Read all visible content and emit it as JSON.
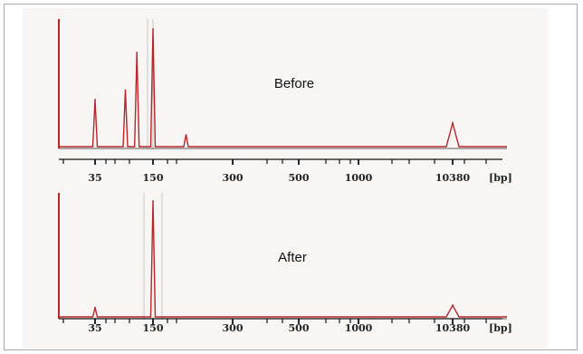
{
  "chart_data": [
    {
      "type": "line",
      "title": "Before",
      "x_unit": "[bp]",
      "tick_labels": [
        "35",
        "150",
        "300",
        "500",
        "1000",
        "10380"
      ],
      "colors": {
        "trace": "#b8262a",
        "baseline": "#5a5a5a",
        "marker": "#c8c8c8"
      },
      "peaks": [
        {
          "size_bp": 35,
          "height": 0.4
        },
        {
          "size_bp": 75,
          "height": 0.48
        },
        {
          "size_bp": 100,
          "height": 0.8
        },
        {
          "size_bp": 150,
          "height": 1.0
        },
        {
          "size_bp": 200,
          "height": 0.1
        },
        {
          "size_bp": 10380,
          "height": 0.2
        }
      ]
    },
    {
      "type": "line",
      "title": "After",
      "x_unit": "[bp]",
      "tick_labels": [
        "35",
        "150",
        "300",
        "500",
        "1000",
        "10380"
      ],
      "colors": {
        "trace": "#b8262a",
        "baseline": "#5a5a5a",
        "marker": "#c8c8c8"
      },
      "peaks": [
        {
          "size_bp": 35,
          "height": 0.08
        },
        {
          "size_bp": 150,
          "height": 1.0
        },
        {
          "size_bp": 10380,
          "height": 0.1
        }
      ]
    }
  ]
}
